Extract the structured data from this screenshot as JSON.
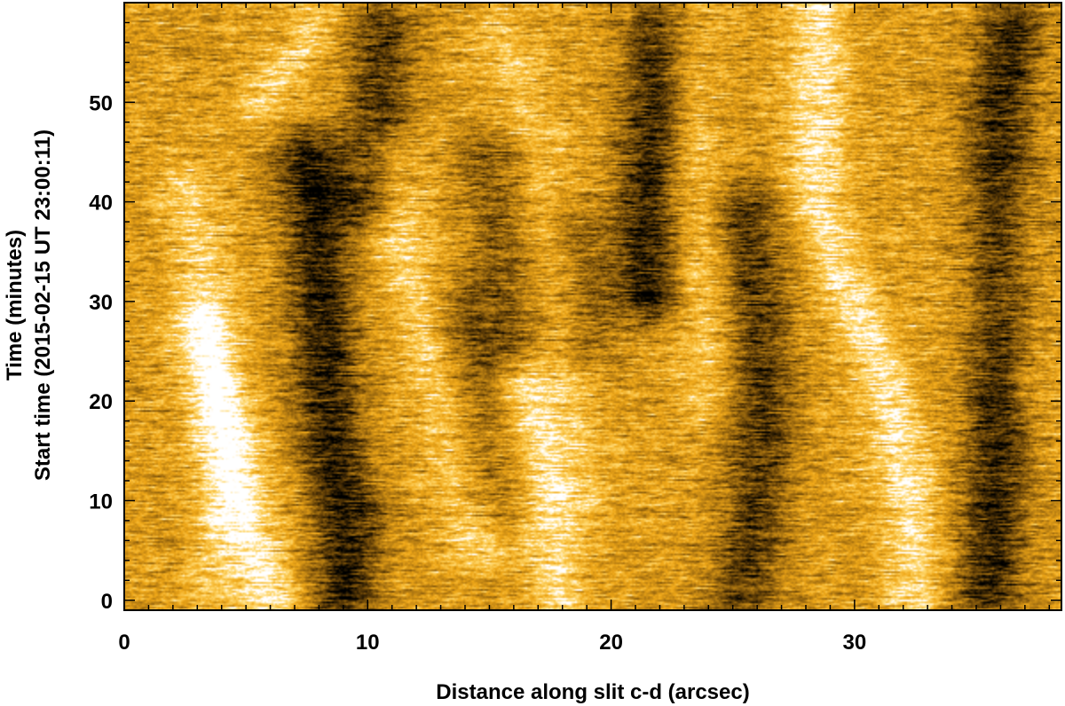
{
  "chart_data": {
    "type": "heatmap",
    "title": "",
    "xlabel": "Distance along slit c-d (arcsec)",
    "ylabel_line1": "Time (minutes)",
    "ylabel_line2": "Start time (2015-02-15 UT 23:00:11)",
    "xlim": [
      0,
      38.5
    ],
    "ylim": [
      -1,
      60
    ],
    "x_ticks": [
      0,
      10,
      20,
      30
    ],
    "y_ticks": [
      0,
      10,
      20,
      30,
      40,
      50
    ],
    "colormap": [
      "#000000",
      "#5a3a06",
      "#b27a12",
      "#f0a818",
      "#ffd76a",
      "#ffffff"
    ],
    "bright_streaks": [
      {
        "x": [
          [
            1,
            3.5
          ],
          [
            12,
            4.0
          ],
          [
            20,
            3.8
          ],
          [
            30,
            3.5
          ],
          [
            42,
            2.5
          ]
        ],
        "amplitude": 0.5
      },
      {
        "x": [
          [
            0,
            6.0
          ],
          [
            8,
            5.0
          ],
          [
            16,
            4.3
          ],
          [
            28,
            3.0
          ]
        ],
        "amplitude": 0.85
      },
      {
        "x": [
          [
            50,
            5.5
          ],
          [
            58,
            8.0
          ]
        ],
        "amplitude": 0.5
      },
      {
        "x": [
          [
            5,
            14.5
          ],
          [
            15,
            13.5
          ],
          [
            25,
            12.5
          ],
          [
            35,
            11.5
          ],
          [
            45,
            11.0
          ]
        ],
        "amplitude": 0.55
      },
      {
        "x": [
          [
            0,
            17.8
          ],
          [
            10,
            17.5
          ],
          [
            22,
            16.5
          ]
        ],
        "amplitude": 0.7
      },
      {
        "x": [
          [
            10,
            19.0
          ],
          [
            25,
            18.0
          ],
          [
            45,
            17.0
          ],
          [
            58,
            15.5
          ]
        ],
        "amplitude": 0.4
      },
      {
        "x": [
          [
            20,
            24.0
          ],
          [
            40,
            23.5
          ],
          [
            58,
            23.0
          ]
        ],
        "amplitude": 0.45
      },
      {
        "x": [
          [
            0,
            32.5
          ],
          [
            10,
            32.3
          ],
          [
            20,
            31.5
          ],
          [
            30,
            30.0
          ],
          [
            40,
            28.5
          ],
          [
            50,
            28.5
          ],
          [
            60,
            28.5
          ]
        ],
        "amplitude": 0.75
      },
      {
        "x": [
          [
            20,
            37.0
          ],
          [
            40,
            36.5
          ]
        ],
        "amplitude": 0.35
      }
    ],
    "dark_streaks": [
      {
        "x": [
          [
            0,
            9.0
          ],
          [
            8,
            9.2
          ],
          [
            15,
            8.5
          ],
          [
            25,
            8.2
          ],
          [
            35,
            8.0
          ],
          [
            45,
            7.5
          ]
        ],
        "amplitude": 0.9
      },
      {
        "x": [
          [
            40,
            10.0
          ],
          [
            50,
            10.5
          ],
          [
            58,
            10.5
          ]
        ],
        "amplitude": 0.7
      },
      {
        "x": [
          [
            10,
            15.0
          ],
          [
            20,
            14.5
          ],
          [
            30,
            14.0
          ]
        ],
        "amplitude": 0.4
      },
      {
        "x": [
          [
            25,
            16.0
          ],
          [
            35,
            15.5
          ],
          [
            45,
            15.0
          ]
        ],
        "amplitude": 0.45
      },
      {
        "x": [
          [
            25,
            19.0
          ],
          [
            38,
            18.5
          ]
        ],
        "amplitude": 0.4
      },
      {
        "x": [
          [
            30,
            21.5
          ],
          [
            40,
            21.5
          ],
          [
            50,
            21.8
          ],
          [
            58,
            22.0
          ]
        ],
        "amplitude": 0.85
      },
      {
        "x": [
          [
            0,
            25.5
          ],
          [
            10,
            26.0
          ],
          [
            20,
            26.2
          ],
          [
            30,
            26.0
          ],
          [
            40,
            25.5
          ]
        ],
        "amplitude": 0.7
      },
      {
        "x": [
          [
            0,
            35.5
          ],
          [
            10,
            35.8
          ],
          [
            20,
            36.0
          ],
          [
            30,
            36.2
          ],
          [
            40,
            36.0
          ],
          [
            50,
            36.0
          ],
          [
            58,
            36.5
          ]
        ],
        "amplitude": 0.85
      }
    ]
  }
}
